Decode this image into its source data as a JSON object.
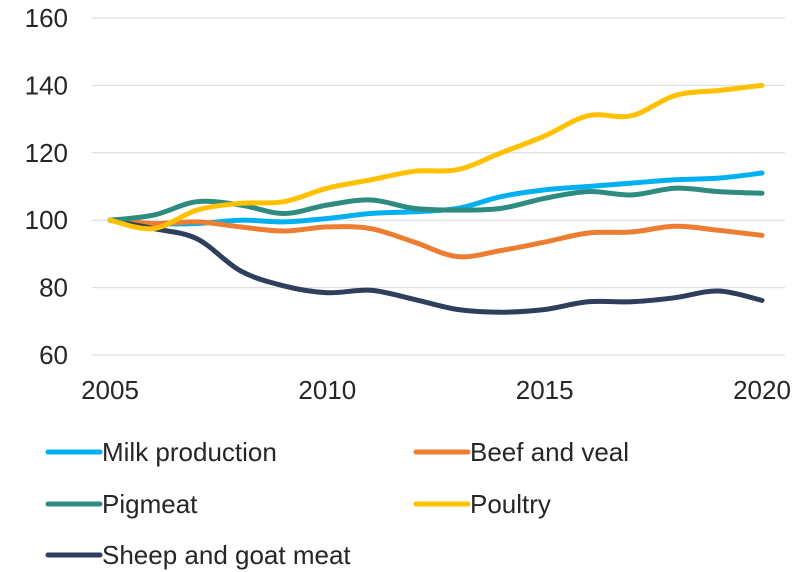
{
  "chart_data": {
    "type": "line",
    "title": "",
    "xlabel": "",
    "ylabel": "",
    "xlim": [
      2005,
      2020
    ],
    "ylim": [
      60,
      160
    ],
    "x_ticks": [
      "2005",
      "2010",
      "2015",
      "2020"
    ],
    "y_ticks": [
      "60",
      "80",
      "100",
      "120",
      "140",
      "160"
    ],
    "grid": "horizontal",
    "legend_position": "bottom",
    "x": [
      2005,
      2006,
      2007,
      2008,
      2009,
      2010,
      2011,
      2012,
      2013,
      2014,
      2015,
      2016,
      2017,
      2018,
      2019,
      2020
    ],
    "series": [
      {
        "name": "Milk production",
        "color": "#00b0f0",
        "values": [
          100,
          99,
          99,
          100,
          99.5,
          100.5,
          102,
          102.5,
          103.5,
          107,
          109,
          110,
          111,
          112,
          112.5,
          114
        ]
      },
      {
        "name": "Beef and veal",
        "color": "#ed7d31",
        "values": [
          100,
          99,
          99.5,
          98,
          96.8,
          98,
          97.5,
          93.5,
          89.2,
          91,
          93.5,
          96.2,
          96.5,
          98.2,
          97,
          95.5
        ]
      },
      {
        "name": "Pigmeat",
        "color": "#2e8b80",
        "values": [
          100,
          101.5,
          105.5,
          104.5,
          102,
          104.5,
          106,
          103.5,
          103,
          103.5,
          106.5,
          108.5,
          107.5,
          109.5,
          108.5,
          108
        ]
      },
      {
        "name": "Poultry",
        "color": "#ffc000",
        "values": [
          100,
          97.5,
          103,
          105,
          105.5,
          109.5,
          112,
          114.5,
          115,
          120,
          125,
          131,
          131,
          137,
          138.5,
          140
        ]
      },
      {
        "name": "Sheep and goat meat",
        "color": "#2f3e5c",
        "values": [
          100,
          97.5,
          94.5,
          85,
          80.5,
          78.5,
          79.2,
          76.5,
          73.5,
          72.7,
          73.5,
          75.8,
          75.8,
          77,
          79,
          76.2
        ]
      }
    ]
  }
}
